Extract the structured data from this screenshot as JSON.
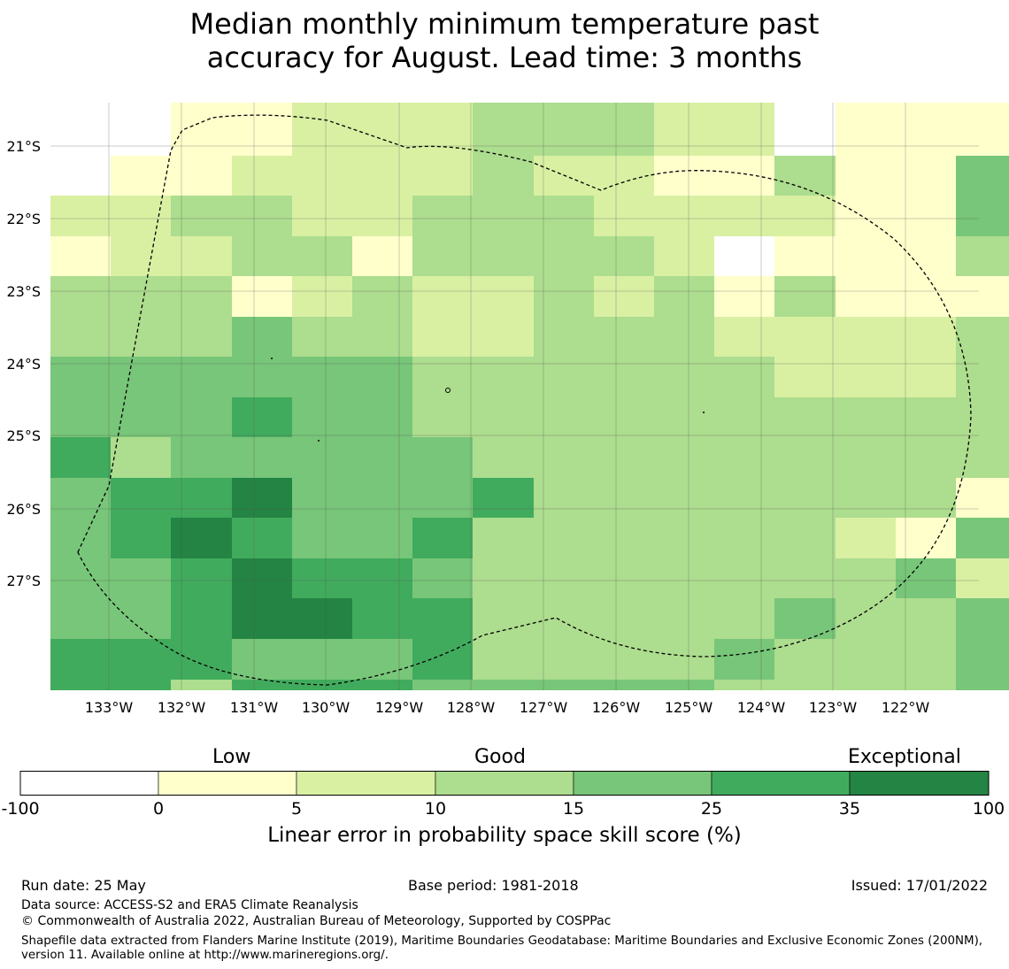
{
  "title": {
    "line1": "Median monthly minimum temperature past",
    "line2": "accuracy for August. Lead time: 3 months"
  },
  "map": {
    "lon_labels": [
      "133°W",
      "132°W",
      "131°W",
      "130°W",
      "129°W",
      "128°W",
      "127°W",
      "126°W",
      "125°W",
      "124°W",
      "123°W",
      "122°W"
    ],
    "lat_labels": [
      "21°S",
      "22°S",
      "23°S",
      "24°S",
      "25°S",
      "26°S",
      "27°S"
    ],
    "grid_rows": [
      "0011222333220111",
      "0112222322113114",
      "2233223332222114",
      "1223313333201113",
      "3331232232313111",
      "3334332233322223",
      "4444443333332223",
      "4445443333333333",
      "5344444333333333",
      "4556444533333331",
      "4565445333333214",
      "4456554333333342",
      "4456655333334334",
      "5554445333343334",
      "5535554444433334"
    ],
    "level_colors": [
      "#ffffff",
      "#ffffcc",
      "#d9f0a3",
      "#addd8e",
      "#78c679",
      "#41ab5d",
      "#238443"
    ]
  },
  "colorbar": {
    "headings": {
      "low": "Low",
      "good": "Good",
      "exceptional": "Exceptional"
    },
    "ticks": [
      "-100",
      "0",
      "5",
      "10",
      "15",
      "25",
      "35",
      "100"
    ],
    "colors": [
      "#ffffff",
      "#ffffcc",
      "#d9f0a3",
      "#addd8e",
      "#78c679",
      "#41ab5d",
      "#238443"
    ],
    "label": "Linear error in probability space skill score (%)"
  },
  "footer": {
    "run_date": "Run date: 25 May",
    "base_period": "Base period: 1981-2018",
    "issued": "Issued: 17/01/2022",
    "data_source": "Data source: ACCESS-S2 and ERA5 Climate Reanalysis",
    "copyright": "© Commonwealth of Australia 2022, Australian Bureau of Meteorology, Supported by COSPPac",
    "shapefile": "Shapefile data extracted from Flanders Marine Institute (2019), Maritime Boundaries Geodatabase: Maritime Boundaries and Exclusive Economic Zones (200NM), version 11. Available online at http://www.marineregions.org/."
  }
}
